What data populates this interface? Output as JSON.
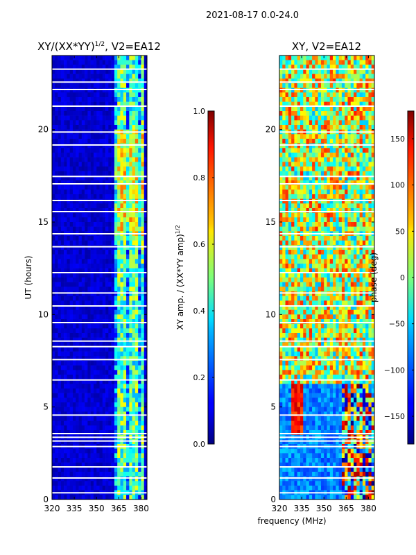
{
  "suptitle": "2021-08-17 0.0-24.0",
  "chart_data": [
    {
      "type": "heatmap",
      "title": "XY/(XX*YY)^1/2, V2=EA12",
      "title_base": "XY/(XX*YY)",
      "title_exp": "1/2",
      "title_tail": ", V2=EA12",
      "xlabel": "",
      "ylabel": "UT (hours)",
      "xlim": [
        320,
        384
      ],
      "ylim": [
        0,
        24
      ],
      "xticks": [
        320,
        335,
        350,
        365,
        380
      ],
      "yticks": [
        0,
        5,
        10,
        15,
        20
      ],
      "colorbar": {
        "label": "XY amp. / (XX*YY amp)^1/2",
        "label_base": "XY amp. / (XX*YY amp)",
        "label_exp": "1/2",
        "range": [
          0.0,
          1.0
        ],
        "ticks": [
          "0.0",
          "0.2",
          "0.4",
          "0.6",
          "0.8",
          "1.0"
        ],
        "colormap": "jet"
      }
    },
    {
      "type": "heatmap",
      "title": "XY, V2=EA12",
      "xlabel": "frequency (MHz)",
      "ylabel": "",
      "xlim": [
        320,
        384
      ],
      "ylim": [
        0,
        24
      ],
      "xticks": [
        320,
        335,
        350,
        365,
        380
      ],
      "yticks": [
        0,
        5,
        10,
        15,
        20
      ],
      "colorbar": {
        "label": "phase (deg)",
        "range": [
          -180,
          180
        ],
        "ticks": [
          "−150",
          "−100",
          "−50",
          "0",
          "50",
          "100",
          "150"
        ],
        "tick_values": [
          -150,
          -100,
          -50,
          0,
          50,
          100,
          150
        ],
        "colormap": "jet"
      }
    }
  ]
}
